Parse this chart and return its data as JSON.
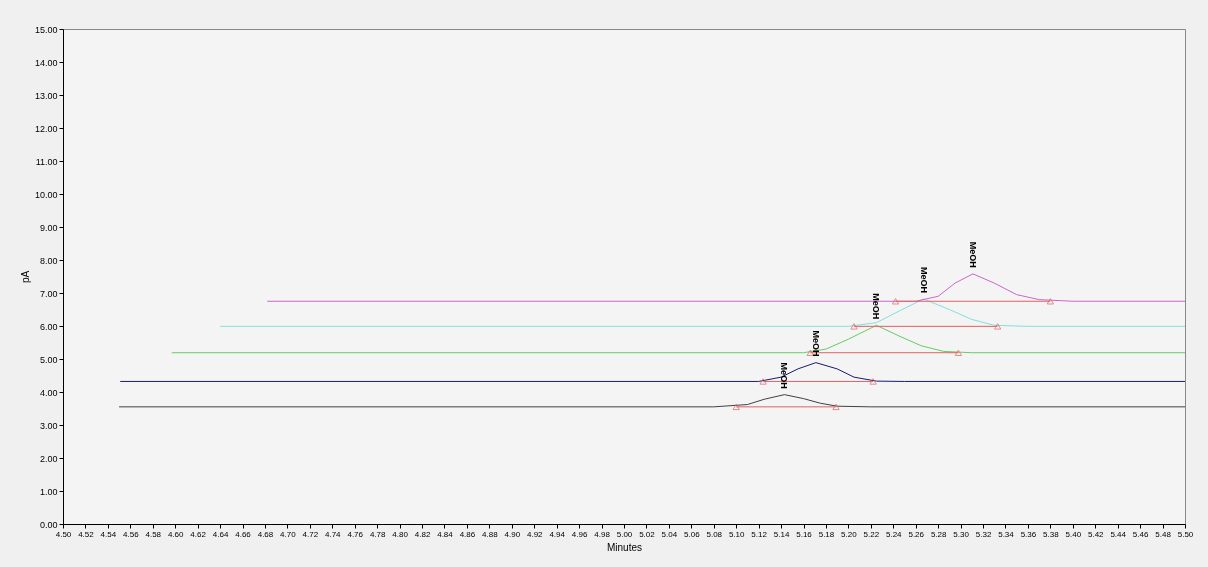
{
  "chart_data": {
    "type": "line",
    "xlabel": "Minutes",
    "ylabel": "pA",
    "xlim": [
      4.5,
      5.5
    ],
    "ylim": [
      0,
      15
    ],
    "xticks": [
      {
        "value": 4.5,
        "label": "4.50"
      },
      {
        "value": 4.52,
        "label": "4.52"
      },
      {
        "value": 4.54,
        "label": "4.54"
      },
      {
        "value": 4.56,
        "label": "4.56"
      },
      {
        "value": 4.58,
        "label": "4.58"
      },
      {
        "value": 4.6,
        "label": "4.60"
      },
      {
        "value": 4.62,
        "label": "4.62"
      },
      {
        "value": 4.64,
        "label": "4.64"
      },
      {
        "value": 4.66,
        "label": "4.66"
      },
      {
        "value": 4.68,
        "label": "4.68"
      },
      {
        "value": 4.7,
        "label": "4.70"
      },
      {
        "value": 4.72,
        "label": "4.72"
      },
      {
        "value": 4.74,
        "label": "4.74"
      },
      {
        "value": 4.76,
        "label": "4.76"
      },
      {
        "value": 4.78,
        "label": "4.78"
      },
      {
        "value": 4.8,
        "label": "4.80"
      },
      {
        "value": 4.82,
        "label": "4.82"
      },
      {
        "value": 4.84,
        "label": "4.84"
      },
      {
        "value": 4.86,
        "label": "4.86"
      },
      {
        "value": 4.88,
        "label": "4.88"
      },
      {
        "value": 4.9,
        "label": "4.90"
      },
      {
        "value": 4.92,
        "label": "4.92"
      },
      {
        "value": 4.94,
        "label": "4.94"
      },
      {
        "value": 4.96,
        "label": "4.96"
      },
      {
        "value": 4.98,
        "label": "4.98"
      },
      {
        "value": 5.0,
        "label": "5.00"
      },
      {
        "value": 5.02,
        "label": "5.02"
      },
      {
        "value": 5.04,
        "label": "5.04"
      },
      {
        "value": 5.06,
        "label": "5.06"
      },
      {
        "value": 5.08,
        "label": "5.08"
      },
      {
        "value": 5.1,
        "label": "5.10"
      },
      {
        "value": 5.12,
        "label": "5.12"
      },
      {
        "value": 5.14,
        "label": "5.14"
      },
      {
        "value": 5.16,
        "label": "5.16"
      },
      {
        "value": 5.18,
        "label": "5.18"
      },
      {
        "value": 5.2,
        "label": "5.20"
      },
      {
        "value": 5.22,
        "label": "5.22"
      },
      {
        "value": 5.24,
        "label": "5.24"
      },
      {
        "value": 5.26,
        "label": "5.26"
      },
      {
        "value": 5.28,
        "label": "5.28"
      },
      {
        "value": 5.3,
        "label": "5.30"
      },
      {
        "value": 5.32,
        "label": "5.32"
      },
      {
        "value": 5.34,
        "label": "5.34"
      },
      {
        "value": 5.36,
        "label": "5.36"
      },
      {
        "value": 5.38,
        "label": "5.38"
      },
      {
        "value": 5.4,
        "label": "5.40"
      },
      {
        "value": 5.42,
        "label": "5.42"
      },
      {
        "value": 5.44,
        "label": "5.44"
      },
      {
        "value": 5.46,
        "label": "5.46"
      },
      {
        "value": 5.48,
        "label": "5.48"
      },
      {
        "value": 5.5,
        "label": "5.50"
      }
    ],
    "yticks": [
      {
        "value": 0,
        "label": "0.00"
      },
      {
        "value": 1,
        "label": "1.00"
      },
      {
        "value": 2,
        "label": "2.00"
      },
      {
        "value": 3,
        "label": "3.00"
      },
      {
        "value": 4,
        "label": "4.00"
      },
      {
        "value": 5,
        "label": "5.00"
      },
      {
        "value": 6,
        "label": "6.00"
      },
      {
        "value": 7,
        "label": "7.00"
      },
      {
        "value": 8,
        "label": "8.00"
      },
      {
        "value": 9,
        "label": "9.00"
      },
      {
        "value": 10,
        "label": "10.00"
      },
      {
        "value": 11,
        "label": "11.00"
      },
      {
        "value": 12,
        "label": "12.00"
      },
      {
        "value": 13,
        "label": "13.00"
      },
      {
        "value": 14,
        "label": "14.00"
      },
      {
        "value": 15,
        "label": "15.00"
      }
    ],
    "grid": false,
    "marker": "none",
    "line_style": "solid",
    "series": [
      {
        "color": "#404040",
        "x": [
          4.55,
          5.08,
          5.11,
          5.125,
          5.143,
          5.16,
          5.175,
          5.19,
          5.22,
          5.5
        ],
        "values": [
          3.55,
          3.55,
          3.62,
          3.78,
          3.92,
          3.8,
          3.66,
          3.57,
          3.55,
          3.55
        ]
      },
      {
        "color": "#1a1a6e",
        "x": [
          4.551,
          5.12,
          5.14,
          5.155,
          5.171,
          5.19,
          5.205,
          5.225,
          5.25,
          5.5
        ],
        "values": [
          4.32,
          4.32,
          4.45,
          4.7,
          4.89,
          4.7,
          4.45,
          4.33,
          4.32,
          4.32
        ]
      },
      {
        "color": "#66cc66",
        "x": [
          4.597,
          5.16,
          5.18,
          5.2,
          5.225,
          5.245,
          5.265,
          5.285,
          5.31,
          5.5
        ],
        "values": [
          5.19,
          5.19,
          5.3,
          5.6,
          6.02,
          5.7,
          5.4,
          5.23,
          5.19,
          5.19
        ]
      },
      {
        "color": "#80e0e0",
        "x": [
          4.64,
          5.2,
          5.225,
          5.245,
          5.267,
          5.29,
          5.31,
          5.33,
          5.36,
          5.5
        ],
        "values": [
          5.99,
          5.99,
          6.1,
          6.45,
          6.82,
          6.5,
          6.2,
          6.02,
          5.99,
          5.99
        ]
      },
      {
        "color": "#cc66cc",
        "x": [
          4.682,
          5.26,
          5.28,
          5.295,
          5.311,
          5.33,
          5.35,
          5.37,
          5.4,
          5.5
        ],
        "values": [
          6.75,
          6.75,
          6.9,
          7.3,
          7.58,
          7.3,
          6.95,
          6.8,
          6.75,
          6.75
        ]
      },
      {
        "color": "#e06060",
        "marker": "triangle",
        "x": [
          5.1,
          5.189
        ],
        "values": [
          3.55,
          3.55
        ]
      },
      {
        "color": "#e06060",
        "marker": "triangle",
        "x": [
          5.124,
          5.222
        ],
        "values": [
          4.32,
          4.32
        ]
      },
      {
        "color": "#e06060",
        "marker": "triangle",
        "x": [
          5.166,
          5.298
        ],
        "values": [
          5.19,
          5.19
        ]
      },
      {
        "color": "#e06060",
        "marker": "triangle",
        "x": [
          5.205,
          5.333
        ],
        "values": [
          5.99,
          5.99
        ]
      },
      {
        "color": "#e06060",
        "marker": "triangle",
        "x": [
          5.242,
          5.38
        ],
        "values": [
          6.75,
          6.75
        ]
      }
    ],
    "annotations": [
      {
        "text": "MeOH",
        "x": 5.143,
        "y": 3.92
      },
      {
        "text": "MeOH",
        "x": 5.171,
        "y": 4.89
      },
      {
        "text": "MeOH",
        "x": 5.225,
        "y": 6.02
      },
      {
        "text": "MeOH",
        "x": 5.267,
        "y": 6.82
      },
      {
        "text": "MeOH",
        "x": 5.311,
        "y": 7.58
      }
    ]
  }
}
